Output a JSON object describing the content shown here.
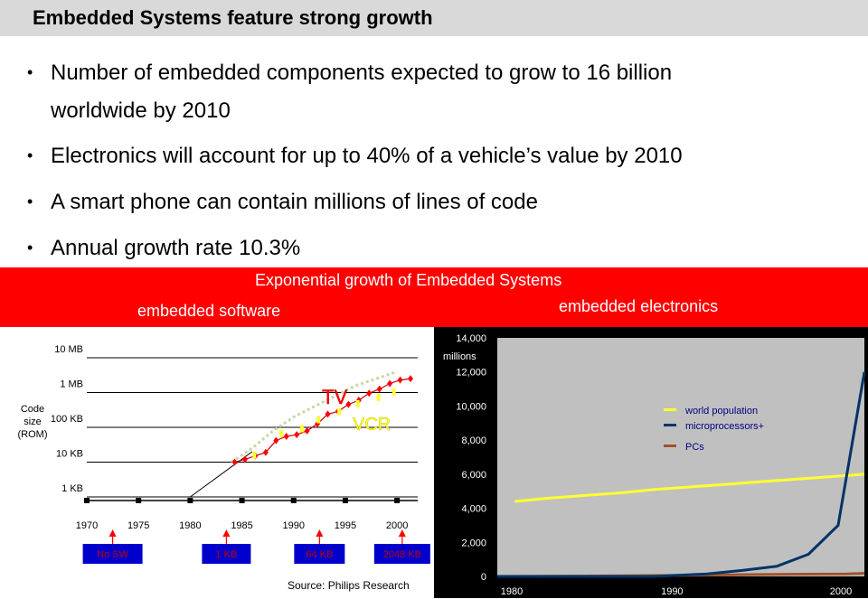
{
  "slide": {
    "title": "Embedded Systems feature strong growth",
    "bullets": [
      {
        "line1": "Number of embedded components expected to grow to 16 billion",
        "line2": "worldwide by 2010"
      },
      {
        "line1": "Electronics will account for up to 40% of a vehicle’s value by 2010"
      },
      {
        "line1": "A smart phone can contain millions of lines of code"
      },
      {
        "line1": "Annual growth rate 10.3%"
      }
    ],
    "bullet_symbol": "•",
    "banner": {
      "title": "Exponential growth of Embedded Systems",
      "left_label": "embedded software",
      "right_label": "embedded electronics"
    },
    "colors": {
      "banner": "#ff0000",
      "title_bar": "#d9d9d9"
    }
  },
  "chart_data": [
    {
      "type": "line",
      "ylabel": "Code size (ROM)",
      "ylabel_lines": [
        "Code",
        "size",
        "(ROM)"
      ],
      "y_ticks": [
        "10 MB",
        "1 MB",
        "100 KB",
        "10 KB",
        "1 KB"
      ],
      "x_ticks": [
        "1970",
        "1975",
        "1980",
        "1985",
        "1990",
        "1995",
        "2000"
      ],
      "annotations": [
        "TV",
        "VCR"
      ],
      "source": "Source: Philips Research",
      "milestones": [
        "No SW",
        "1 KB",
        "64 KB",
        "2048 KB"
      ],
      "series": [
        {
          "years": [
            1980,
            1986
          ],
          "log_kb": [
            0,
            1.3
          ],
          "style": "solid-black"
        },
        {
          "years": [
            1984,
            1986,
            1988,
            1990,
            1992,
            1994,
            1996,
            1998,
            2000
          ],
          "log_kb": [
            1,
            1.4,
            1.9,
            2.3,
            2.6,
            2.9,
            3.2,
            3.4,
            3.6
          ],
          "style": "dotted-green"
        },
        {
          "years": [
            1984.3,
            1985.3,
            1986.3,
            1987.3,
            1988.3,
            1989.3,
            1990.3,
            1991.3,
            1992.3,
            1993.3,
            1994.3,
            1995.3,
            1996.3,
            1997.3,
            1998.3,
            1999.3,
            2000.3,
            2001.3
          ],
          "log_kb": [
            1.0,
            1.08,
            1.18,
            1.28,
            1.62,
            1.74,
            1.79,
            1.9,
            2.1,
            2.38,
            2.46,
            2.66,
            2.78,
            2.98,
            3.1,
            3.26,
            3.36,
            3.4
          ],
          "style": "red-diamonds"
        },
        {
          "years": [
            1986.2,
            1988.8,
            1990.8,
            1992.4,
            1994.4,
            1996.2,
            1998.2,
            1999.7
          ],
          "log_kb": [
            1.2,
            1.82,
            1.96,
            2.22,
            2.45,
            2.68,
            2.86,
            3.02
          ],
          "style": "yellow-points"
        }
      ],
      "xlim": [
        1970,
        2002
      ],
      "ylim_log_kb": [
        0,
        4
      ]
    },
    {
      "type": "line",
      "ylabel": "millions",
      "y_ticks": [
        0,
        2000,
        4000,
        6000,
        8000,
        10000,
        12000,
        14000
      ],
      "y_tick_labels": [
        "0",
        "2,000",
        "4,000",
        "6,000",
        "8,000",
        "10,000",
        "12,000",
        "14,000"
      ],
      "x_ticks": [
        1980,
        1990,
        2000
      ],
      "xlim": [
        1980,
        2001
      ],
      "ylim": [
        0,
        14000
      ],
      "legend_position": "right",
      "series": [
        {
          "name": "world population",
          "color": "#ffff33",
          "x": [
            1981,
            1983,
            1985,
            1987,
            1989,
            1991,
            1993,
            1995,
            1997,
            1999,
            2001
          ],
          "y": [
            4400,
            4600,
            4750,
            4900,
            5100,
            5250,
            5400,
            5550,
            5700,
            5850,
            6000
          ]
        },
        {
          "name": "microprocessors+",
          "color": "#003366",
          "x": [
            1980,
            1983,
            1986,
            1989,
            1992,
            1994,
            1996,
            1997.8,
            1999.5,
            2001
          ],
          "y": [
            0,
            0,
            0,
            0,
            150,
            350,
            600,
            1300,
            3000,
            12000
          ]
        },
        {
          "name": "PCs",
          "color": "#a0522d",
          "x": [
            1980,
            1985,
            1990,
            1995,
            2000,
            2001
          ],
          "y": [
            0,
            20,
            60,
            110,
            150,
            180
          ]
        }
      ]
    }
  ]
}
